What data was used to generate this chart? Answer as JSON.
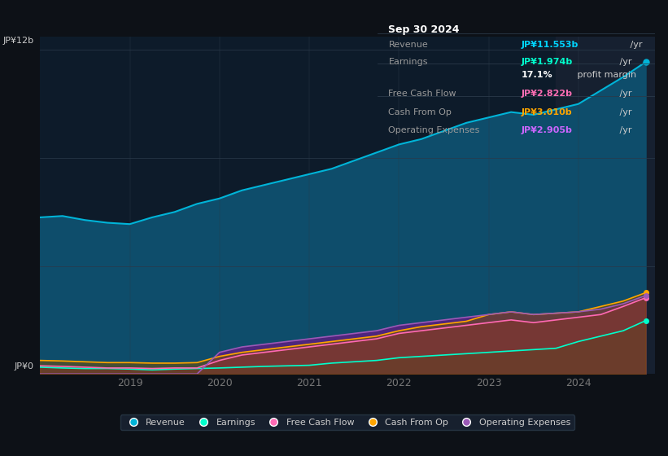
{
  "background_color": "#0d1117",
  "plot_bg_color": "#0d1b2a",
  "grid_color": "#2a3a4a",
  "title_box": {
    "date": "Sep 30 2024",
    "rows": [
      {
        "label": "Revenue",
        "value": "JP¥11.553b",
        "value_color": "#00d4ff",
        "suffix": " /yr"
      },
      {
        "label": "Earnings",
        "value": "JP¥1.974b",
        "value_color": "#00ffcc",
        "suffix": " /yr"
      },
      {
        "label_empty": "",
        "value": "17.1%",
        "value_color": "#ffffff",
        "suffix": " profit margin"
      },
      {
        "label": "Free Cash Flow",
        "value": "JP¥2.822b",
        "value_color": "#ff6eb4",
        "suffix": " /yr"
      },
      {
        "label": "Cash From Op",
        "value": "JP¥3.010b",
        "value_color": "#ffa500",
        "suffix": " /yr"
      },
      {
        "label": "Operating Expenses",
        "value": "JP¥2.905b",
        "value_color": "#cc66ff",
        "suffix": " /yr"
      }
    ]
  },
  "ylabel_top": "JP¥12b",
  "ylabel_bottom": "JP¥0",
  "xlabel_ticks": [
    "2019",
    "2020",
    "2021",
    "2022",
    "2023",
    "2024"
  ],
  "series": {
    "revenue": {
      "color": "#00b4d8",
      "fill_color": "#0e4d6b",
      "label": "Revenue",
      "x": [
        2018.0,
        2018.25,
        2018.5,
        2018.75,
        2019.0,
        2019.25,
        2019.5,
        2019.75,
        2020.0,
        2020.25,
        2020.5,
        2020.75,
        2021.0,
        2021.25,
        2021.5,
        2021.75,
        2022.0,
        2022.25,
        2022.5,
        2022.75,
        2023.0,
        2023.25,
        2023.5,
        2023.75,
        2024.0,
        2024.25,
        2024.5,
        2024.75
      ],
      "y": [
        5.8,
        5.85,
        5.7,
        5.6,
        5.55,
        5.8,
        6.0,
        6.3,
        6.5,
        6.8,
        7.0,
        7.2,
        7.4,
        7.6,
        7.9,
        8.2,
        8.5,
        8.7,
        9.0,
        9.3,
        9.5,
        9.7,
        9.6,
        9.8,
        10.0,
        10.5,
        11.0,
        11.553
      ]
    },
    "earnings": {
      "color": "#00ffcc",
      "fill_color": "#00ffcc",
      "label": "Earnings",
      "x": [
        2018.0,
        2018.25,
        2018.5,
        2018.75,
        2019.0,
        2019.25,
        2019.5,
        2019.75,
        2020.0,
        2020.25,
        2020.5,
        2020.75,
        2021.0,
        2021.25,
        2021.5,
        2021.75,
        2022.0,
        2022.25,
        2022.5,
        2022.75,
        2023.0,
        2023.25,
        2023.5,
        2023.75,
        2024.0,
        2024.25,
        2024.5,
        2024.75
      ],
      "y": [
        0.25,
        0.22,
        0.2,
        0.2,
        0.18,
        0.15,
        0.18,
        0.2,
        0.22,
        0.25,
        0.28,
        0.3,
        0.32,
        0.4,
        0.45,
        0.5,
        0.6,
        0.65,
        0.7,
        0.75,
        0.8,
        0.85,
        0.9,
        0.95,
        1.2,
        1.4,
        1.6,
        1.974
      ]
    },
    "free_cash_flow": {
      "color": "#ff69b4",
      "fill_color": "#ff69b4",
      "label": "Free Cash Flow",
      "x": [
        2018.0,
        2018.25,
        2018.5,
        2018.75,
        2019.0,
        2019.25,
        2019.5,
        2019.75,
        2020.0,
        2020.25,
        2020.5,
        2020.75,
        2021.0,
        2021.25,
        2021.5,
        2021.75,
        2022.0,
        2022.25,
        2022.5,
        2022.75,
        2023.0,
        2023.25,
        2023.5,
        2023.75,
        2024.0,
        2024.25,
        2024.5,
        2024.75
      ],
      "y": [
        0.3,
        0.28,
        0.25,
        0.22,
        0.22,
        0.2,
        0.22,
        0.22,
        0.5,
        0.7,
        0.8,
        0.9,
        1.0,
        1.1,
        1.2,
        1.3,
        1.5,
        1.6,
        1.7,
        1.8,
        1.9,
        2.0,
        1.9,
        2.0,
        2.1,
        2.2,
        2.5,
        2.822
      ]
    },
    "cash_from_op": {
      "color": "#ffa500",
      "fill_color": "#ffa500",
      "label": "Cash From Op",
      "x": [
        2018.0,
        2018.25,
        2018.5,
        2018.75,
        2019.0,
        2019.25,
        2019.5,
        2019.75,
        2020.0,
        2020.25,
        2020.5,
        2020.75,
        2021.0,
        2021.25,
        2021.5,
        2021.75,
        2022.0,
        2022.25,
        2022.5,
        2022.75,
        2023.0,
        2023.25,
        2023.5,
        2023.75,
        2024.0,
        2024.25,
        2024.5,
        2024.75
      ],
      "y": [
        0.5,
        0.48,
        0.45,
        0.42,
        0.42,
        0.4,
        0.4,
        0.42,
        0.65,
        0.8,
        0.9,
        1.0,
        1.1,
        1.2,
        1.3,
        1.4,
        1.6,
        1.75,
        1.85,
        1.95,
        2.2,
        2.3,
        2.2,
        2.25,
        2.3,
        2.5,
        2.7,
        3.01
      ]
    },
    "operating_expenses": {
      "color": "#9b59b6",
      "fill_color": "#7b2d8b",
      "label": "Operating Expenses",
      "x": [
        2018.0,
        2018.25,
        2018.5,
        2018.75,
        2019.0,
        2019.25,
        2019.5,
        2019.75,
        2020.0,
        2020.25,
        2020.5,
        2020.75,
        2021.0,
        2021.25,
        2021.5,
        2021.75,
        2022.0,
        2022.25,
        2022.5,
        2022.75,
        2023.0,
        2023.25,
        2023.5,
        2023.75,
        2024.0,
        2024.25,
        2024.5,
        2024.75
      ],
      "y": [
        0.0,
        0.0,
        0.0,
        0.0,
        0.0,
        0.0,
        0.0,
        0.0,
        0.8,
        1.0,
        1.1,
        1.2,
        1.3,
        1.4,
        1.5,
        1.6,
        1.8,
        1.9,
        2.0,
        2.1,
        2.2,
        2.3,
        2.2,
        2.25,
        2.3,
        2.4,
        2.6,
        2.905
      ]
    }
  },
  "ylim": [
    0,
    12.5
  ],
  "xlim": [
    2018.0,
    2024.85
  ],
  "highlight_x_start": 2023.75,
  "highlight_x_end": 2024.85,
  "highlight_color": "#162030"
}
